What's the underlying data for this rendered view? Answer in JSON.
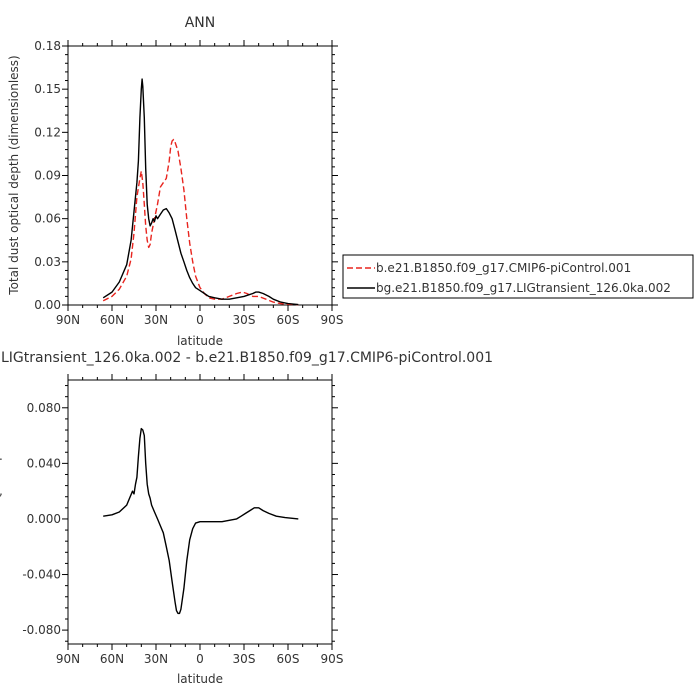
{
  "chart_data": [
    {
      "type": "line",
      "title": "ANN",
      "xlabel": "latitude",
      "ylabel": "Total dust optical depth (dimensionless)",
      "x_ticks": [
        90,
        60,
        30,
        0,
        -30,
        -60,
        -90
      ],
      "x_tick_labels": [
        "90N",
        "60N",
        "30N",
        "0",
        "30S",
        "60S",
        "90S"
      ],
      "xlim": [
        90,
        -90
      ],
      "ylim": [
        0,
        0.18
      ],
      "y_ticks": [
        0,
        0.03,
        0.06,
        0.09,
        0.12,
        0.15,
        0.18
      ],
      "y_tick_labels": [
        "0.00",
        "0.03",
        "0.06",
        "0.09",
        "0.12",
        "0.15",
        "0.18"
      ],
      "legend_position": "right",
      "series": [
        {
          "name": "b.e21.B1850.f09_g17.CMIP6-piControl.001",
          "color": "#e8251f",
          "dash": "dashed",
          "points": [
            [
              66,
              0.003
            ],
            [
              60,
              0.006
            ],
            [
              55,
              0.011
            ],
            [
              50,
              0.02
            ],
            [
              47,
              0.032
            ],
            [
              45,
              0.05
            ],
            [
              43,
              0.075
            ],
            [
              41,
              0.088
            ],
            [
              40,
              0.093
            ],
            [
              39,
              0.085
            ],
            [
              38,
              0.07
            ],
            [
              37,
              0.055
            ],
            [
              36,
              0.045
            ],
            [
              35,
              0.04
            ],
            [
              34,
              0.042
            ],
            [
              33,
              0.05
            ],
            [
              31,
              0.06
            ],
            [
              29,
              0.07
            ],
            [
              27,
              0.082
            ],
            [
              25,
              0.085
            ],
            [
              23,
              0.088
            ],
            [
              21,
              0.1
            ],
            [
              20,
              0.11
            ],
            [
              19,
              0.114
            ],
            [
              18,
              0.115
            ],
            [
              17,
              0.113
            ],
            [
              15,
              0.107
            ],
            [
              13,
              0.095
            ],
            [
              11,
              0.08
            ],
            [
              9,
              0.06
            ],
            [
              7,
              0.043
            ],
            [
              5,
              0.03
            ],
            [
              3,
              0.02
            ],
            [
              0,
              0.012
            ],
            [
              -3,
              0.008
            ],
            [
              -6,
              0.005
            ],
            [
              -10,
              0.004
            ],
            [
              -15,
              0.004
            ],
            [
              -20,
              0.006
            ],
            [
              -25,
              0.008
            ],
            [
              -29,
              0.009
            ],
            [
              -32,
              0.008
            ],
            [
              -36,
              0.006
            ],
            [
              -40,
              0.006
            ],
            [
              -45,
              0.004
            ],
            [
              -50,
              0.002
            ],
            [
              -55,
              0.001
            ],
            [
              -60,
              0.0005
            ],
            [
              -67,
              0.0002
            ]
          ]
        },
        {
          "name": "bg.e21.B1850.f09_g17.LIGtransient_126.0ka.002",
          "color": "#000000",
          "dash": "solid",
          "points": [
            [
              66,
              0.005
            ],
            [
              60,
              0.009
            ],
            [
              55,
              0.016
            ],
            [
              50,
              0.028
            ],
            [
              47,
              0.045
            ],
            [
              45,
              0.065
            ],
            [
              43,
              0.085
            ],
            [
              42,
              0.1
            ],
            [
              41,
              0.13
            ],
            [
              40,
              0.15
            ],
            [
              39.5,
              0.157
            ],
            [
              39,
              0.152
            ],
            [
              38,
              0.13
            ],
            [
              37,
              0.095
            ],
            [
              36,
              0.07
            ],
            [
              35,
              0.06
            ],
            [
              34,
              0.055
            ],
            [
              33,
              0.057
            ],
            [
              32,
              0.06
            ],
            [
              31,
              0.058
            ],
            [
              30,
              0.062
            ],
            [
              29,
              0.06
            ],
            [
              27,
              0.063
            ],
            [
              25,
              0.066
            ],
            [
              23,
              0.067
            ],
            [
              21,
              0.064
            ],
            [
              19,
              0.06
            ],
            [
              17,
              0.052
            ],
            [
              15,
              0.044
            ],
            [
              13,
              0.036
            ],
            [
              11,
              0.03
            ],
            [
              9,
              0.024
            ],
            [
              7,
              0.019
            ],
            [
              5,
              0.015
            ],
            [
              3,
              0.012
            ],
            [
              0,
              0.01
            ],
            [
              -3,
              0.008
            ],
            [
              -6,
              0.006
            ],
            [
              -10,
              0.005
            ],
            [
              -15,
              0.004
            ],
            [
              -20,
              0.004
            ],
            [
              -25,
              0.005
            ],
            [
              -30,
              0.006
            ],
            [
              -33,
              0.007
            ],
            [
              -36,
              0.008
            ],
            [
              -38,
              0.009
            ],
            [
              -40,
              0.009
            ],
            [
              -43,
              0.008
            ],
            [
              -47,
              0.006
            ],
            [
              -50,
              0.004
            ],
            [
              -55,
              0.002
            ],
            [
              -60,
              0.001
            ],
            [
              -67,
              0.0003
            ]
          ]
        }
      ]
    },
    {
      "type": "line",
      "title": "LIGtransient_126.0ka.002 - b.e21.B1850.f09_g17.CMIP6-piControl.001",
      "xlabel": "latitude",
      "ylabel": "",
      "x_ticks": [
        90,
        60,
        30,
        0,
        -30,
        -60,
        -90
      ],
      "x_tick_labels": [
        "90N",
        "60N",
        "30N",
        "0",
        "30S",
        "60S",
        "90S"
      ],
      "xlim": [
        90,
        -90
      ],
      "ylim": [
        -0.09,
        0.1
      ],
      "y_ticks": [
        -0.08,
        -0.04,
        0,
        0.04,
        0.08
      ],
      "y_tick_labels": [
        "-0.080",
        "-0.040",
        "0.000",
        "0.040",
        "0.080"
      ],
      "series": [
        {
          "name": "",
          "color": "#000000",
          "dash": "solid",
          "points": [
            [
              66,
              0.002
            ],
            [
              60,
              0.003
            ],
            [
              55,
              0.005
            ],
            [
              50,
              0.01
            ],
            [
              48,
              0.015
            ],
            [
              46,
              0.02
            ],
            [
              45,
              0.018
            ],
            [
              44,
              0.025
            ],
            [
              43,
              0.03
            ],
            [
              42,
              0.045
            ],
            [
              41,
              0.058
            ],
            [
              40,
              0.065
            ],
            [
              39,
              0.064
            ],
            [
              38,
              0.06
            ],
            [
              37,
              0.04
            ],
            [
              36,
              0.025
            ],
            [
              35,
              0.018
            ],
            [
              34,
              0.015
            ],
            [
              33,
              0.01
            ],
            [
              31,
              0.005
            ],
            [
              29,
              0.0
            ],
            [
              27,
              -0.005
            ],
            [
              25,
              -0.01
            ],
            [
              23,
              -0.02
            ],
            [
              21,
              -0.03
            ],
            [
              19,
              -0.045
            ],
            [
              17,
              -0.06
            ],
            [
              16,
              -0.066
            ],
            [
              15,
              -0.068
            ],
            [
              14,
              -0.068
            ],
            [
              13,
              -0.065
            ],
            [
              11,
              -0.05
            ],
            [
              9,
              -0.03
            ],
            [
              7,
              -0.015
            ],
            [
              5,
              -0.007
            ],
            [
              3,
              -0.003
            ],
            [
              0,
              -0.002
            ],
            [
              -5,
              -0.002
            ],
            [
              -10,
              -0.002
            ],
            [
              -15,
              -0.002
            ],
            [
              -20,
              -0.001
            ],
            [
              -25,
              0.0
            ],
            [
              -28,
              0.002
            ],
            [
              -31,
              0.004
            ],
            [
              -34,
              0.006
            ],
            [
              -37,
              0.008
            ],
            [
              -40,
              0.008
            ],
            [
              -43,
              0.006
            ],
            [
              -47,
              0.004
            ],
            [
              -52,
              0.002
            ],
            [
              -58,
              0.001
            ],
            [
              -67,
              0.0
            ]
          ]
        }
      ]
    }
  ]
}
